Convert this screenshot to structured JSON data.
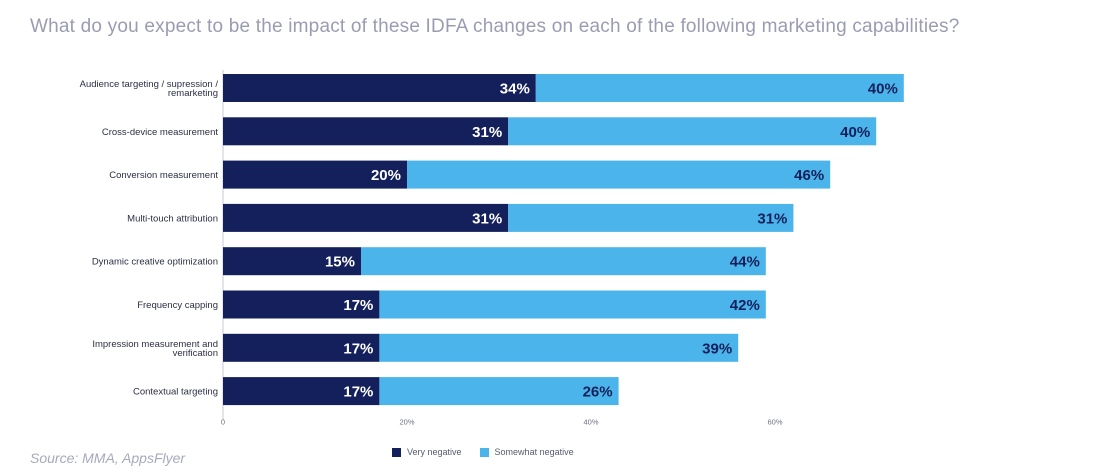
{
  "title": "What do you expect to be the impact of these IDFA changes on each of the following marketing capabilities?",
  "source": "Source: MMA, AppsFlyer",
  "colors": {
    "very_negative": "#14205c",
    "somewhat_negative": "#4bb4ea",
    "title": "#9a9cb2"
  },
  "legend": {
    "very_negative": "Very negative",
    "somewhat_negative": "Somewhat negative"
  },
  "chart_data": {
    "type": "bar",
    "orientation": "horizontal",
    "stacked": true,
    "categories": [
      [
        "Audience targeting / supression /",
        "remarketing"
      ],
      [
        "Cross-device measurement"
      ],
      [
        "Conversion measurement"
      ],
      [
        "Multi-touch attribution"
      ],
      [
        "Dynamic creative optimization"
      ],
      [
        "Frequency capping"
      ],
      [
        "Impression measurement and",
        "verification"
      ],
      [
        "Contextual targeting"
      ]
    ],
    "series": [
      {
        "name": "Very negative",
        "values": [
          34,
          31,
          20,
          31,
          15,
          17,
          17,
          17
        ],
        "labels": [
          "34%",
          "31%",
          "20%",
          "31%",
          "15%",
          "17%",
          "17%",
          "17%"
        ]
      },
      {
        "name": "Somewhat negative",
        "values": [
          40,
          40,
          46,
          31,
          44,
          42,
          39,
          26
        ],
        "labels": [
          "40%",
          "40%",
          "46%",
          "31%",
          "44%",
          "42%",
          "39%",
          "26%"
        ]
      }
    ],
    "x_ticks": [
      0,
      20,
      40,
      60
    ],
    "x_tick_labels": [
      "0",
      "20%",
      "40%",
      "60%"
    ],
    "xlim": [
      0,
      80
    ],
    "legend_position": "bottom-center",
    "grid": false
  }
}
